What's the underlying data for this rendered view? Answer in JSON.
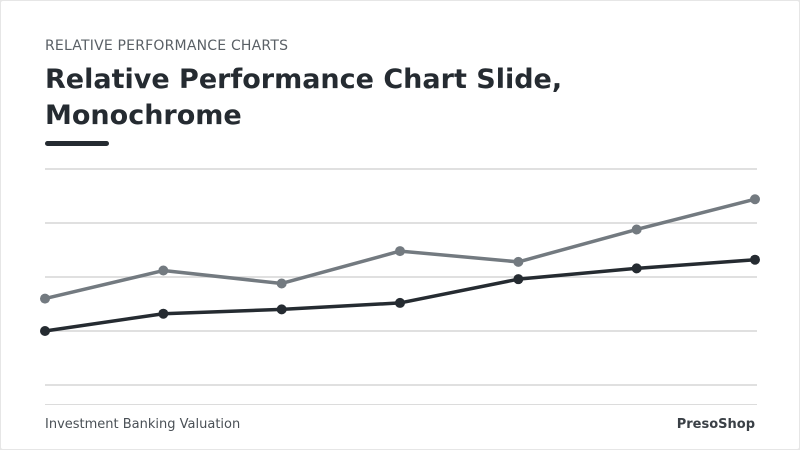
{
  "header": {
    "eyebrow": "RELATIVE PERFORMANCE CHARTS",
    "title": "Relative Performance Chart Slide, Monochrome"
  },
  "footer": {
    "left": "Investment Banking Valuation",
    "right": "PresoShop"
  },
  "colors": {
    "series_light": "#737a80",
    "series_dark": "#252b31",
    "gridline": "#d6d6d6",
    "accent": "#252b31"
  },
  "chart_data": {
    "type": "line",
    "x": [
      1,
      2,
      3,
      4,
      5,
      6,
      7
    ],
    "ylim": [
      0,
      100
    ],
    "grid": true,
    "legend": "none",
    "title": "",
    "xlabel": "",
    "ylabel": "",
    "series": [
      {
        "values": [
          40,
          53,
          47,
          62,
          57,
          72,
          86
        ],
        "color": "#737a80"
      },
      {
        "values": [
          25,
          33,
          35,
          38,
          49,
          54,
          58
        ],
        "color": "#252b31"
      }
    ]
  }
}
